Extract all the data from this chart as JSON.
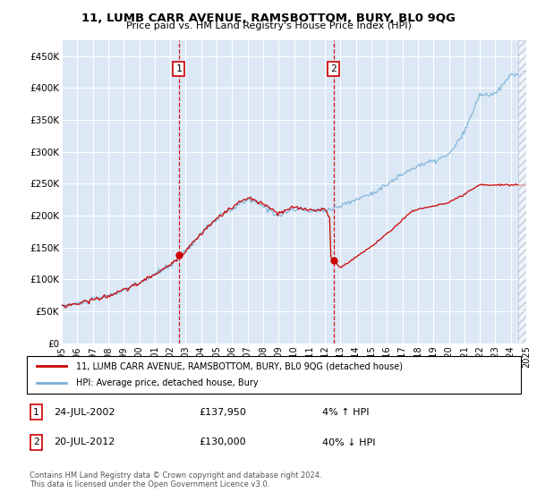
{
  "title": "11, LUMB CARR AVENUE, RAMSBOTTOM, BURY, BL0 9QG",
  "subtitle": "Price paid vs. HM Land Registry's House Price Index (HPI)",
  "ylim": [
    0,
    475000
  ],
  "yticks": [
    0,
    50000,
    100000,
    150000,
    200000,
    250000,
    300000,
    350000,
    400000,
    450000
  ],
  "ytick_labels": [
    "£0",
    "£50K",
    "£100K",
    "£150K",
    "£200K",
    "£250K",
    "£300K",
    "£350K",
    "£400K",
    "£450K"
  ],
  "plot_bg_color": "#dce8f5",
  "grid_color": "#ffffff",
  "line_color_hpi": "#7ab0d8",
  "line_color_price": "#cc0000",
  "marker1_date_x": 2002.55,
  "marker1_price": 137950,
  "marker1_label": "1",
  "marker1_date_str": "24-JUL-2002",
  "marker1_price_str": "£137,950",
  "marker1_pct": "4% ↑ HPI",
  "marker2_date_x": 2012.55,
  "marker2_price": 130000,
  "marker2_label": "2",
  "marker2_date_str": "20-JUL-2012",
  "marker2_price_str": "£130,000",
  "marker2_pct": "40% ↓ HPI",
  "legend_line1": "11, LUMB CARR AVENUE, RAMSBOTTOM, BURY, BL0 9QG (detached house)",
  "legend_line2": "HPI: Average price, detached house, Bury",
  "footnote": "Contains HM Land Registry data © Crown copyright and database right 2024.\nThis data is licensed under the Open Government Licence v3.0.",
  "xmin": 1995,
  "xmax": 2025,
  "hatch_xmin": 2024.5,
  "hatch_xmax": 2025.0,
  "shade_xmin": 2002.55,
  "shade_xmax": 2012.55
}
